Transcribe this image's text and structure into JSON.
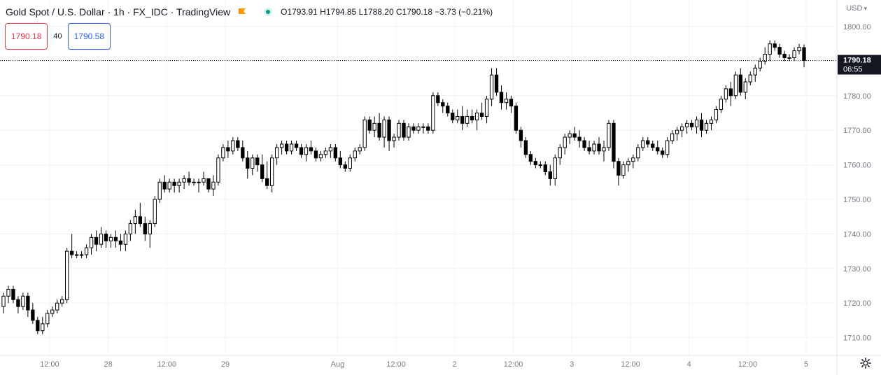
{
  "header": {
    "title": "Gold Spot / U.S. Dollar · 1h · FX_IDC · TradingView",
    "ohlc": {
      "open_label": "O",
      "open": "1793.91",
      "high_label": "H",
      "high": "1794.85",
      "low_label": "L",
      "low": "1788.20",
      "close_label": "C",
      "close": "1790.18",
      "change": "−3.73 (−0.21%)"
    },
    "currency": "USD"
  },
  "quote": {
    "sell": "1790.18",
    "spread": "40",
    "buy": "1790.58"
  },
  "price_label": {
    "price": "1790.18",
    "countdown": "06:55"
  },
  "colors": {
    "background": "#ffffff",
    "grid": "#f0f3fa",
    "up_body": "#ffffff",
    "down_body": "#000000",
    "wick": "#000000",
    "sell": "#f23645",
    "buy": "#2962ff",
    "brand_flag": "#ff9800"
  },
  "chart_data": {
    "type": "candlestick",
    "title": "Gold Spot / U.S. Dollar · 1h · FX_IDC · TradingView",
    "ylim": [
      1707,
      1804
    ],
    "grid": true,
    "y_ticks": [
      "1800.00",
      "1790.00",
      "1780.00",
      "1770.00",
      "1760.00",
      "1750.00",
      "1740.00",
      "1730.00",
      "1720.00",
      "1710.00"
    ],
    "x_ticks": [
      {
        "label": "12:00",
        "index": 5
      },
      {
        "label": "28",
        "index": 17
      },
      {
        "label": "12:00",
        "index": 29
      },
      {
        "label": "29",
        "index": 41
      },
      {
        "label": "Aug",
        "index": 64
      },
      {
        "label": "12:00",
        "index": 76
      },
      {
        "label": "2",
        "index": 88
      },
      {
        "label": "12:00",
        "index": 100
      },
      {
        "label": "3",
        "index": 112
      },
      {
        "label": "12:00",
        "index": 124
      },
      {
        "label": "4",
        "index": 136
      },
      {
        "label": "12:00",
        "index": 148
      },
      {
        "label": "5",
        "index": 160
      }
    ],
    "last_price": 1790.18,
    "candles": [
      [
        1719,
        1723,
        1717,
        1722
      ],
      [
        1722,
        1725,
        1720,
        1724
      ],
      [
        1724,
        1725,
        1720,
        1721
      ],
      [
        1721,
        1722,
        1717,
        1719
      ],
      [
        1719,
        1723,
        1718,
        1722
      ],
      [
        1722,
        1723,
        1716,
        1718
      ],
      [
        1718,
        1720,
        1714,
        1715
      ],
      [
        1715,
        1716,
        1711,
        1712
      ],
      [
        1712,
        1716,
        1711,
        1714
      ],
      [
        1714,
        1718,
        1713,
        1717
      ],
      [
        1717,
        1719,
        1716,
        1718
      ],
      [
        1718,
        1721,
        1717,
        1720
      ],
      [
        1720,
        1722,
        1719,
        1721
      ],
      [
        1721,
        1736,
        1720,
        1735
      ],
      [
        1735,
        1740,
        1733,
        1734
      ],
      [
        1734,
        1735,
        1733,
        1734
      ],
      [
        1734,
        1735,
        1733,
        1734
      ],
      [
        1734,
        1737,
        1733,
        1736
      ],
      [
        1736,
        1740,
        1734,
        1739
      ],
      [
        1739,
        1741,
        1735,
        1737
      ],
      [
        1737,
        1742,
        1736,
        1740
      ],
      [
        1740,
        1741,
        1736,
        1738
      ],
      [
        1738,
        1740,
        1736,
        1739
      ],
      [
        1739,
        1741,
        1736,
        1738
      ],
      [
        1738,
        1740,
        1735,
        1737
      ],
      [
        1737,
        1741,
        1735,
        1740
      ],
      [
        1740,
        1744,
        1738,
        1743
      ],
      [
        1743,
        1747,
        1740,
        1745
      ],
      [
        1745,
        1749,
        1742,
        1743
      ],
      [
        1743,
        1745,
        1738,
        1740
      ],
      [
        1740,
        1744,
        1736,
        1743
      ],
      [
        1743,
        1751,
        1742,
        1750
      ],
      [
        1750,
        1756,
        1749,
        1755
      ],
      [
        1755,
        1757,
        1752,
        1753
      ],
      [
        1753,
        1756,
        1752,
        1755
      ],
      [
        1755,
        1756,
        1752,
        1754
      ],
      [
        1754,
        1756,
        1752,
        1755
      ],
      [
        1755,
        1757,
        1753,
        1756
      ],
      [
        1756,
        1758,
        1754,
        1755
      ],
      [
        1755,
        1756,
        1754,
        1755
      ],
      [
        1755,
        1756,
        1752,
        1755
      ],
      [
        1755,
        1758,
        1754,
        1756
      ],
      [
        1756,
        1756,
        1752,
        1753
      ],
      [
        1753,
        1757,
        1751,
        1755
      ],
      [
        1755,
        1763,
        1754,
        1762
      ],
      [
        1762,
        1766,
        1761,
        1765
      ],
      [
        1765,
        1767,
        1762,
        1764
      ],
      [
        1764,
        1768,
        1763,
        1767
      ],
      [
        1767,
        1768,
        1764,
        1765
      ],
      [
        1765,
        1767,
        1761,
        1762
      ],
      [
        1762,
        1764,
        1756,
        1759
      ],
      [
        1759,
        1763,
        1757,
        1762
      ],
      [
        1762,
        1763,
        1758,
        1760
      ],
      [
        1760,
        1763,
        1755,
        1756
      ],
      [
        1756,
        1761,
        1753,
        1754
      ],
      [
        1754,
        1763,
        1752,
        1762
      ],
      [
        1762,
        1766,
        1760,
        1765
      ],
      [
        1765,
        1767,
        1763,
        1766
      ],
      [
        1766,
        1767,
        1763,
        1764
      ],
      [
        1764,
        1767,
        1763,
        1766
      ],
      [
        1766,
        1767,
        1764,
        1765
      ],
      [
        1765,
        1766,
        1762,
        1763
      ],
      [
        1763,
        1766,
        1761,
        1765
      ],
      [
        1765,
        1767,
        1763,
        1764
      ],
      [
        1764,
        1765,
        1761,
        1762
      ],
      [
        1762,
        1764,
        1761,
        1763
      ],
      [
        1763,
        1765,
        1762,
        1764
      ],
      [
        1764,
        1766,
        1762,
        1765
      ],
      [
        1765,
        1766,
        1761,
        1762
      ],
      [
        1762,
        1764,
        1759,
        1760
      ],
      [
        1760,
        1761,
        1758,
        1759
      ],
      [
        1759,
        1763,
        1758,
        1762
      ],
      [
        1762,
        1765,
        1761,
        1764
      ],
      [
        1764,
        1766,
        1763,
        1765
      ],
      [
        1765,
        1774,
        1764,
        1773
      ],
      [
        1773,
        1774,
        1769,
        1770
      ],
      [
        1770,
        1774,
        1768,
        1772
      ],
      [
        1772,
        1775,
        1767,
        1768
      ],
      [
        1768,
        1774,
        1765,
        1773
      ],
      [
        1773,
        1774,
        1764,
        1767
      ],
      [
        1767,
        1769,
        1765,
        1768
      ],
      [
        1768,
        1773,
        1767,
        1772
      ],
      [
        1772,
        1773,
        1767,
        1768
      ],
      [
        1768,
        1772,
        1767,
        1771
      ],
      [
        1771,
        1772,
        1769,
        1770
      ],
      [
        1770,
        1772,
        1769,
        1771
      ],
      [
        1771,
        1772,
        1769,
        1771
      ],
      [
        1771,
        1772,
        1769,
        1770
      ],
      [
        1770,
        1781,
        1769,
        1780
      ],
      [
        1780,
        1781,
        1777,
        1778
      ],
      [
        1778,
        1779,
        1775,
        1777
      ],
      [
        1777,
        1778,
        1774,
        1775
      ],
      [
        1775,
        1776,
        1772,
        1773
      ],
      [
        1773,
        1776,
        1772,
        1774
      ],
      [
        1774,
        1777,
        1770,
        1772
      ],
      [
        1772,
        1776,
        1771,
        1774
      ],
      [
        1774,
        1776,
        1772,
        1773
      ],
      [
        1773,
        1776,
        1770,
        1775
      ],
      [
        1775,
        1778,
        1773,
        1774
      ],
      [
        1774,
        1780,
        1772,
        1779
      ],
      [
        1779,
        1788,
        1777,
        1786
      ],
      [
        1786,
        1788,
        1780,
        1781
      ],
      [
        1781,
        1783,
        1776,
        1778
      ],
      [
        1778,
        1781,
        1776,
        1779
      ],
      [
        1779,
        1780,
        1775,
        1777
      ],
      [
        1777,
        1778,
        1769,
        1770
      ],
      [
        1770,
        1771,
        1765,
        1767
      ],
      [
        1767,
        1768,
        1762,
        1763
      ],
      [
        1763,
        1764,
        1760,
        1761
      ],
      [
        1761,
        1762,
        1759,
        1760
      ],
      [
        1760,
        1761,
        1759,
        1760
      ],
      [
        1760,
        1761,
        1757,
        1758
      ],
      [
        1758,
        1760,
        1754,
        1756
      ],
      [
        1756,
        1763,
        1754,
        1762
      ],
      [
        1762,
        1766,
        1760,
        1765
      ],
      [
        1765,
        1769,
        1763,
        1768
      ],
      [
        1768,
        1770,
        1766,
        1769
      ],
      [
        1769,
        1771,
        1767,
        1768
      ],
      [
        1768,
        1770,
        1765,
        1767
      ],
      [
        1767,
        1768,
        1764,
        1765
      ],
      [
        1765,
        1767,
        1763,
        1764
      ],
      [
        1764,
        1767,
        1763,
        1766
      ],
      [
        1766,
        1768,
        1763,
        1764
      ],
      [
        1764,
        1767,
        1761,
        1765
      ],
      [
        1765,
        1773,
        1764,
        1772
      ],
      [
        1772,
        1773,
        1759,
        1761
      ],
      [
        1761,
        1762,
        1754,
        1757
      ],
      [
        1757,
        1761,
        1756,
        1760
      ],
      [
        1760,
        1762,
        1758,
        1761
      ],
      [
        1761,
        1763,
        1759,
        1762
      ],
      [
        1762,
        1766,
        1761,
        1765
      ],
      [
        1765,
        1768,
        1764,
        1767
      ],
      [
        1767,
        1768,
        1765,
        1766
      ],
      [
        1766,
        1767,
        1764,
        1765
      ],
      [
        1765,
        1767,
        1763,
        1764
      ],
      [
        1764,
        1765,
        1762,
        1763
      ],
      [
        1763,
        1768,
        1762,
        1767
      ],
      [
        1767,
        1770,
        1766,
        1769
      ],
      [
        1769,
        1771,
        1767,
        1770
      ],
      [
        1770,
        1772,
        1768,
        1771
      ],
      [
        1771,
        1773,
        1769,
        1772
      ],
      [
        1772,
        1773,
        1770,
        1771
      ],
      [
        1771,
        1774,
        1769,
        1773
      ],
      [
        1773,
        1775,
        1768,
        1770
      ],
      [
        1770,
        1773,
        1769,
        1772
      ],
      [
        1772,
        1774,
        1770,
        1773
      ],
      [
        1773,
        1777,
        1772,
        1776
      ],
      [
        1776,
        1780,
        1775,
        1779
      ],
      [
        1779,
        1783,
        1778,
        1782
      ],
      [
        1782,
        1784,
        1777,
        1780
      ],
      [
        1780,
        1787,
        1779,
        1786
      ],
      [
        1786,
        1788,
        1780,
        1781
      ],
      [
        1781,
        1785,
        1779,
        1784
      ],
      [
        1784,
        1787,
        1783,
        1786
      ],
      [
        1786,
        1789,
        1784,
        1788
      ],
      [
        1788,
        1791,
        1787,
        1790
      ],
      [
        1790,
        1794,
        1789,
        1792
      ],
      [
        1792,
        1796,
        1790,
        1795
      ],
      [
        1795,
        1796,
        1793,
        1794
      ],
      [
        1794,
        1795,
        1791,
        1792
      ],
      [
        1792,
        1793,
        1790,
        1791
      ],
      [
        1791,
        1792,
        1790,
        1791
      ],
      [
        1791,
        1794,
        1790,
        1793
      ],
      [
        1793,
        1795,
        1792,
        1794
      ],
      [
        1793.91,
        1794.85,
        1788.2,
        1790.18
      ]
    ]
  }
}
